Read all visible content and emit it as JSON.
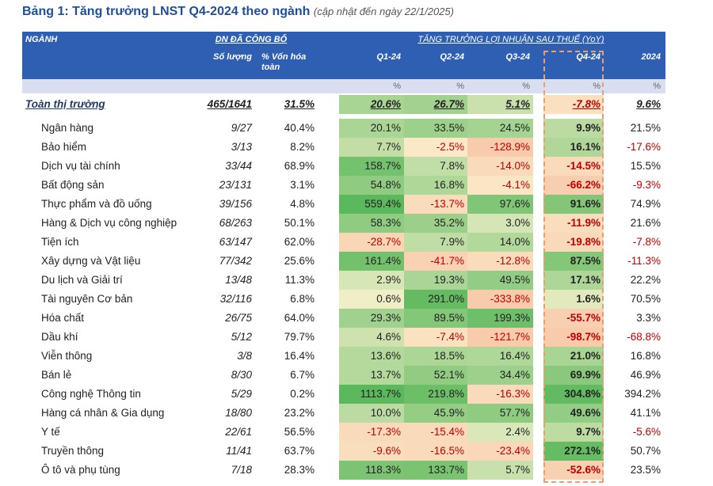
{
  "header": {
    "title": "Bảng 1: Tăng trưởng LNST Q4-2024 theo ngành",
    "subtitle": "(cập nhật đến ngày 22/1/2025)"
  },
  "table": {
    "group_headers": [
      "NGÀNH",
      "DN ĐÃ CÔNG BỐ",
      "TĂNG TRƯỞNG LỢI NHUẬN SAU THUẾ (YoY)"
    ],
    "columns": [
      "Số lượng",
      "% Vốn hóa toàn",
      "Q1-24",
      "Q2-24",
      "Q3-24",
      "Q4-24",
      "2024"
    ],
    "units": [
      "%",
      "%",
      "%",
      "%",
      "%"
    ],
    "total": [
      "Toàn thị trường",
      "465/1641",
      "31.5%",
      "20.6%",
      "26.7%",
      "5.1%",
      "-7.8%",
      "9.6%"
    ],
    "rows": [
      [
        "Ngân hàng",
        "9/27",
        "40.4%",
        "20.1%",
        "33.5%",
        "24.5%",
        "9.9%",
        "21.5%"
      ],
      [
        "Bảo hiểm",
        "3/13",
        "8.2%",
        "7.7%",
        "-2.5%",
        "-128.9%",
        "16.1%",
        "-17.6%"
      ],
      [
        "Dịch vụ tài chính",
        "33/44",
        "68.9%",
        "158.7%",
        "7.8%",
        "-14.0%",
        "-14.5%",
        "15.5%"
      ],
      [
        "Bất động sản",
        "23/131",
        "3.1%",
        "54.8%",
        "16.8%",
        "-4.1%",
        "-66.2%",
        "-9.3%"
      ],
      [
        "Thực phẩm và đồ uống",
        "39/156",
        "4.8%",
        "559.4%",
        "-13.7%",
        "97.6%",
        "91.6%",
        "74.9%"
      ],
      [
        "Hàng & Dịch vụ công nghiệp",
        "68/263",
        "50.1%",
        "58.3%",
        "35.2%",
        "3.0%",
        "-11.9%",
        "21.6%"
      ],
      [
        "Tiện ích",
        "63/147",
        "62.0%",
        "-28.7%",
        "7.9%",
        "14.0%",
        "-19.8%",
        "-7.8%"
      ],
      [
        "Xây dựng và Vật liệu",
        "77/342",
        "25.6%",
        "161.4%",
        "-41.7%",
        "-12.8%",
        "87.5%",
        "-11.3%"
      ],
      [
        "Du lịch và Giải trí",
        "13/48",
        "11.3%",
        "2.9%",
        "19.3%",
        "49.5%",
        "17.1%",
        "22.2%"
      ],
      [
        "Tài nguyên Cơ bản",
        "32/116",
        "6.8%",
        "0.6%",
        "291.0%",
        "-333.8%",
        "1.6%",
        "70.5%"
      ],
      [
        "Hóa chất",
        "26/75",
        "64.0%",
        "29.3%",
        "89.5%",
        "199.3%",
        "-55.7%",
        "3.3%"
      ],
      [
        "Dầu khí",
        "5/12",
        "79.7%",
        "4.6%",
        "-7.4%",
        "-121.7%",
        "-98.7%",
        "-68.8%"
      ],
      [
        "Viễn thông",
        "3/8",
        "16.4%",
        "13.6%",
        "18.5%",
        "16.4%",
        "21.0%",
        "16.8%"
      ],
      [
        "Bán lẻ",
        "8/30",
        "6.7%",
        "13.7%",
        "52.1%",
        "34.4%",
        "69.9%",
        "46.9%"
      ],
      [
        "Công nghệ Thông tin",
        "5/29",
        "0.2%",
        "1113.7%",
        "219.8%",
        "-16.3%",
        "304.8%",
        "394.2%"
      ],
      [
        "Hàng cá nhân & Gia dụng",
        "18/80",
        "23.2%",
        "10.0%",
        "45.9%",
        "57.7%",
        "49.6%",
        "41.1%"
      ],
      [
        "Y tế",
        "22/61",
        "56.5%",
        "-17.3%",
        "-15.4%",
        "2.4%",
        "9.7%",
        "-5.6%"
      ],
      [
        "Truyền thông",
        "11/41",
        "63.7%",
        "-9.6%",
        "-16.5%",
        "-23.4%",
        "272.1%",
        "50.7%"
      ],
      [
        "Ô tô và phụ tùng",
        "7/18",
        "28.3%",
        "118.3%",
        "133.7%",
        "5.7%",
        "-52.6%",
        "23.5%"
      ]
    ],
    "heat_colors": {
      "neutral": "#fbf3d0",
      "positive": "#5cb85c",
      "negative": "#f8cbad"
    },
    "negative_text_color": "#c00000",
    "header_color": "#2f5fb3"
  }
}
